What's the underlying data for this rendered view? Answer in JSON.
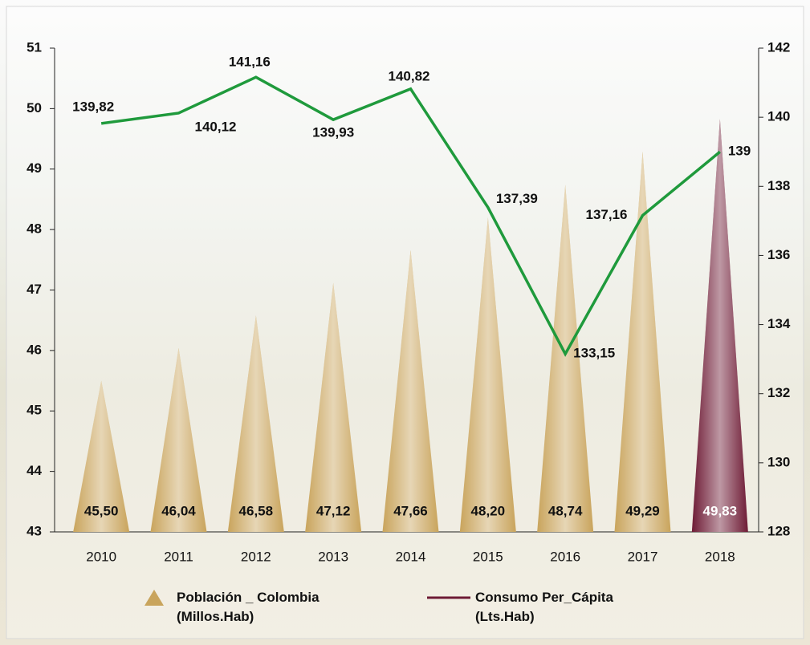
{
  "chart_data": {
    "type": "bar-line",
    "categories": [
      "2010",
      "2011",
      "2012",
      "2013",
      "2014",
      "2015",
      "2016",
      "2017",
      "2018"
    ],
    "series": [
      {
        "name": "Población _ Colombia (Millos.Hab)",
        "color": "#c9a45c",
        "colors": [
          "#c9a45c",
          "#c9a45c",
          "#c9a45c",
          "#c9a45c",
          "#c9a45c",
          "#c9a45c",
          "#c9a45c",
          "#c9a45c",
          "#6e1b35"
        ],
        "values": [
          45.5,
          46.04,
          46.58,
          47.12,
          47.66,
          48.2,
          48.74,
          49.29,
          49.83
        ],
        "value_labels": [
          "45,50",
          "46,04",
          "46,58",
          "47,12",
          "47,66",
          "48,20",
          "48,74",
          "49,29",
          "49,83"
        ]
      },
      {
        "name": "Consumo Per_Cápita (Lts.Hab)",
        "color": "#1f9a3c",
        "legend_color": "#6e1b35",
        "axis": "y2",
        "values": [
          139.82,
          140.12,
          141.16,
          139.93,
          140.82,
          137.39,
          133.15,
          137.16,
          139
        ],
        "value_labels": [
          "139,82",
          "140,12",
          "141,16",
          "139,93",
          "140,82",
          "137,39",
          "133,15",
          "137,16",
          "139"
        ]
      }
    ],
    "ylim": [
      43,
      51
    ],
    "yticks": [
      43,
      44,
      45,
      46,
      47,
      48,
      49,
      50,
      51
    ],
    "y2lim": [
      128,
      142
    ],
    "y2ticks": [
      128,
      130,
      132,
      134,
      136,
      138,
      140,
      142
    ]
  }
}
